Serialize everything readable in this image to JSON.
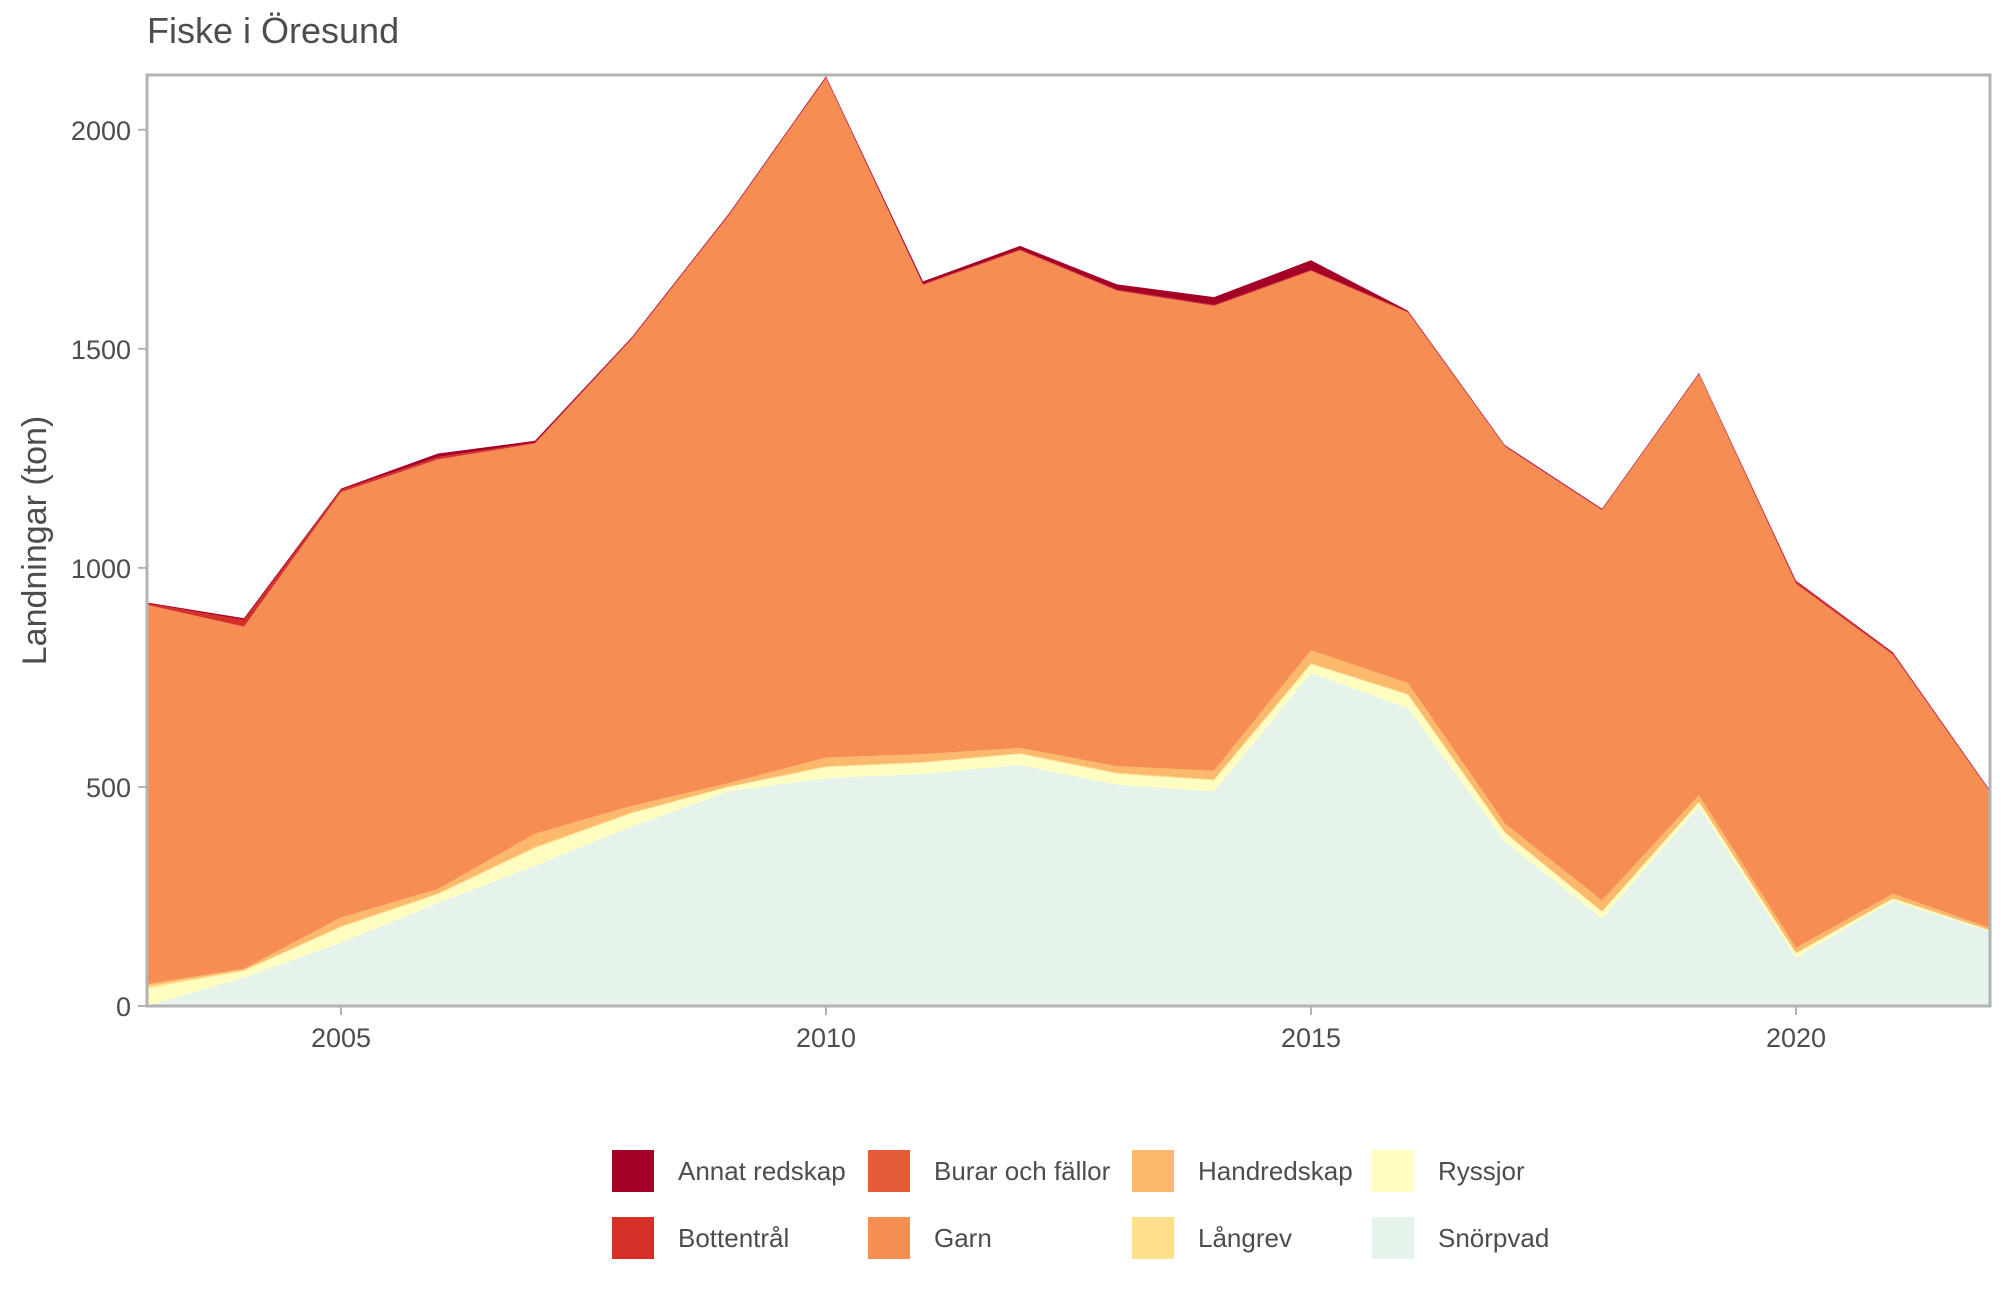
{
  "chart_data": {
    "type": "area",
    "stacked": true,
    "title": "Fiske i Öresund",
    "xlabel": "",
    "ylabel": "Landningar (ton)",
    "xlim": [
      2003,
      2022
    ],
    "ylim": [
      0,
      2125
    ],
    "x_ticks": [
      2005,
      2010,
      2015,
      2020
    ],
    "y_ticks": [
      0,
      500,
      1000,
      1500,
      2000
    ],
    "grid": false,
    "legend_position": "bottom",
    "x": [
      2003,
      2004,
      2005,
      2006,
      2007,
      2008,
      2009,
      2010,
      2011,
      2012,
      2013,
      2014,
      2015,
      2016,
      2017,
      2018,
      2019,
      2020,
      2021,
      2022
    ],
    "series": [
      {
        "name": "Snörpvad",
        "color": "#e5f3ea",
        "values": [
          0,
          65,
          145,
          235,
          320,
          410,
          490,
          520,
          530,
          550,
          505,
          490,
          760,
          680,
          375,
          200,
          455,
          110,
          240,
          170
        ]
      },
      {
        "name": "Ryssjor",
        "color": "#fffdbf",
        "values": [
          40,
          15,
          35,
          20,
          40,
          30,
          10,
          25,
          25,
          25,
          25,
          25,
          20,
          30,
          20,
          15,
          10,
          10,
          5,
          2
        ]
      },
      {
        "name": "Långrev",
        "color": "#fee08b",
        "values": [
          5,
          2,
          2,
          2,
          3,
          2,
          1,
          2,
          2,
          2,
          2,
          2,
          2,
          2,
          1,
          1,
          1,
          1,
          1,
          1
        ]
      },
      {
        "name": "Handredskap",
        "color": "#fdb96b",
        "values": [
          5,
          3,
          20,
          10,
          30,
          15,
          8,
          20,
          18,
          12,
          15,
          20,
          30,
          25,
          20,
          25,
          15,
          12,
          10,
          5
        ]
      },
      {
        "name": "Garn",
        "color": "#f68d52",
        "values": [
          865,
          780,
          970,
          980,
          890,
          1065,
          1295,
          1550,
          1070,
          1135,
          1085,
          1060,
          865,
          845,
          860,
          890,
          960,
          830,
          545,
          310
        ]
      },
      {
        "name": "Burar och fällor",
        "color": "#e65c3a",
        "values": [
          1,
          1,
          1,
          1,
          1,
          1,
          1,
          1,
          1,
          1,
          1,
          1,
          1,
          1,
          1,
          1,
          1,
          1,
          1,
          1
        ]
      },
      {
        "name": "Bottentrål",
        "color": "#d62f27",
        "values": [
          3,
          15,
          5,
          5,
          2,
          2,
          2,
          2,
          2,
          2,
          2,
          2,
          2,
          2,
          1,
          1,
          1,
          5,
          3,
          1
        ]
      },
      {
        "name": "Annat redskap",
        "color": "#a50026",
        "values": [
          2,
          4,
          3,
          8,
          4,
          2,
          2,
          2,
          6,
          8,
          12,
          18,
          22,
          2,
          2,
          2,
          2,
          2,
          2,
          2
        ]
      }
    ],
    "legend_order": [
      "Annat redskap",
      "Burar och fällor",
      "Handredskap",
      "Ryssjor",
      "Bottentrål",
      "Garn",
      "Långrev",
      "Snörpvad"
    ]
  }
}
